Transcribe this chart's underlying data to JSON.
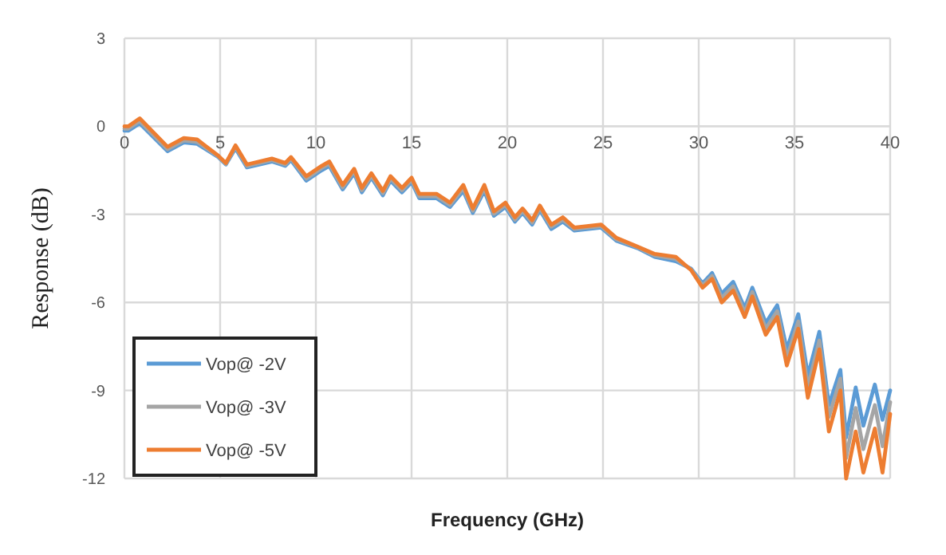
{
  "chart_data": {
    "type": "line",
    "xlabel": "Frequency (GHz)",
    "ylabel": "Response (dB)",
    "xlim": [
      0,
      40
    ],
    "xticks": [
      0,
      5,
      10,
      15,
      20,
      25,
      30,
      35,
      40
    ],
    "ylim": [
      -12,
      3
    ],
    "yticks": [
      -12,
      -9,
      -6,
      -3,
      0,
      3
    ],
    "grid": true,
    "legend": "bottom left",
    "marker": "none",
    "line_style": "solid",
    "x": [
      0,
      0.2,
      0.8,
      2.25,
      3.1,
      3.8,
      4.9,
      5.3,
      5.8,
      6.4,
      7.7,
      8.4,
      8.7,
      9.5,
      10.3,
      10.7,
      11.4,
      12,
      12.4,
      12.9,
      13.5,
      13.9,
      14.5,
      15,
      15.4,
      16.3,
      17,
      17.7,
      18.2,
      18.8,
      19.3,
      19.9,
      20.4,
      20.8,
      21.3,
      21.7,
      22.3,
      22.9,
      23.5,
      24.9,
      25.7,
      26.8,
      27.7,
      28.8,
      29.6,
      30.2,
      30.7,
      31.2,
      31.8,
      32.4,
      32.8,
      33.5,
      34.1,
      34.6,
      35.2,
      35.7,
      36.3,
      36.8,
      37.4,
      37.7,
      38.2,
      38.6,
      39.2,
      39.6,
      40
    ],
    "series": [
      {
        "name": "Vop@ -2V",
        "color": "#5b9bd5",
        "values": [
          -0.15,
          -0.15,
          0.1,
          -0.85,
          -0.55,
          -0.6,
          -1.05,
          -1.3,
          -0.75,
          -1.4,
          -1.2,
          -1.35,
          -1.15,
          -1.85,
          -1.5,
          -1.35,
          -2.15,
          -1.6,
          -2.25,
          -1.75,
          -2.35,
          -1.85,
          -2.25,
          -1.9,
          -2.45,
          -2.45,
          -2.75,
          -2.2,
          -2.95,
          -2.2,
          -3.05,
          -2.75,
          -3.25,
          -2.95,
          -3.35,
          -2.85,
          -3.5,
          -3.25,
          -3.55,
          -3.45,
          -3.9,
          -4.15,
          -4.45,
          -4.6,
          -4.85,
          -5.35,
          -5.0,
          -5.7,
          -5.3,
          -6.2,
          -5.5,
          -6.7,
          -6.1,
          -7.6,
          -6.4,
          -8.5,
          -7.0,
          -9.5,
          -8.3,
          -10.6,
          -8.9,
          -10.2,
          -8.8,
          -10.0,
          -9.0
        ]
      },
      {
        "name": "Vop@ -3V",
        "color": "#a5a5a5",
        "values": [
          -0.08,
          -0.08,
          0.18,
          -0.78,
          -0.48,
          -0.53,
          -1.02,
          -1.28,
          -0.7,
          -1.35,
          -1.15,
          -1.3,
          -1.1,
          -1.78,
          -1.42,
          -1.28,
          -2.08,
          -1.52,
          -2.18,
          -1.68,
          -2.28,
          -1.78,
          -2.18,
          -1.82,
          -2.38,
          -2.38,
          -2.68,
          -2.1,
          -2.88,
          -2.1,
          -2.98,
          -2.68,
          -3.18,
          -2.88,
          -3.28,
          -2.78,
          -3.42,
          -3.18,
          -3.5,
          -3.4,
          -3.85,
          -4.12,
          -4.4,
          -4.52,
          -4.88,
          -5.42,
          -5.1,
          -5.85,
          -5.45,
          -6.35,
          -5.65,
          -6.9,
          -6.3,
          -7.9,
          -6.65,
          -8.9,
          -7.3,
          -9.9,
          -8.6,
          -11.3,
          -9.6,
          -11.0,
          -9.5,
          -10.9,
          -9.4
        ]
      },
      {
        "name": "Vop@ -5V",
        "color": "#ed7d31",
        "values": [
          0,
          0,
          0.27,
          -0.7,
          -0.4,
          -0.45,
          -1.0,
          -1.25,
          -0.65,
          -1.3,
          -1.1,
          -1.25,
          -1.05,
          -1.7,
          -1.35,
          -1.2,
          -2.0,
          -1.45,
          -2.1,
          -1.6,
          -2.2,
          -1.7,
          -2.1,
          -1.75,
          -2.3,
          -2.3,
          -2.6,
          -2.0,
          -2.8,
          -2.0,
          -2.9,
          -2.6,
          -3.1,
          -2.8,
          -3.2,
          -2.7,
          -3.35,
          -3.1,
          -3.45,
          -3.35,
          -3.8,
          -4.1,
          -4.35,
          -4.45,
          -4.9,
          -5.5,
          -5.2,
          -6.0,
          -5.6,
          -6.5,
          -5.8,
          -7.1,
          -6.5,
          -8.15,
          -6.9,
          -9.25,
          -7.6,
          -10.4,
          -9.0,
          -12,
          -10.4,
          -11.8,
          -10.3,
          -11.8,
          -9.8
        ]
      }
    ]
  }
}
